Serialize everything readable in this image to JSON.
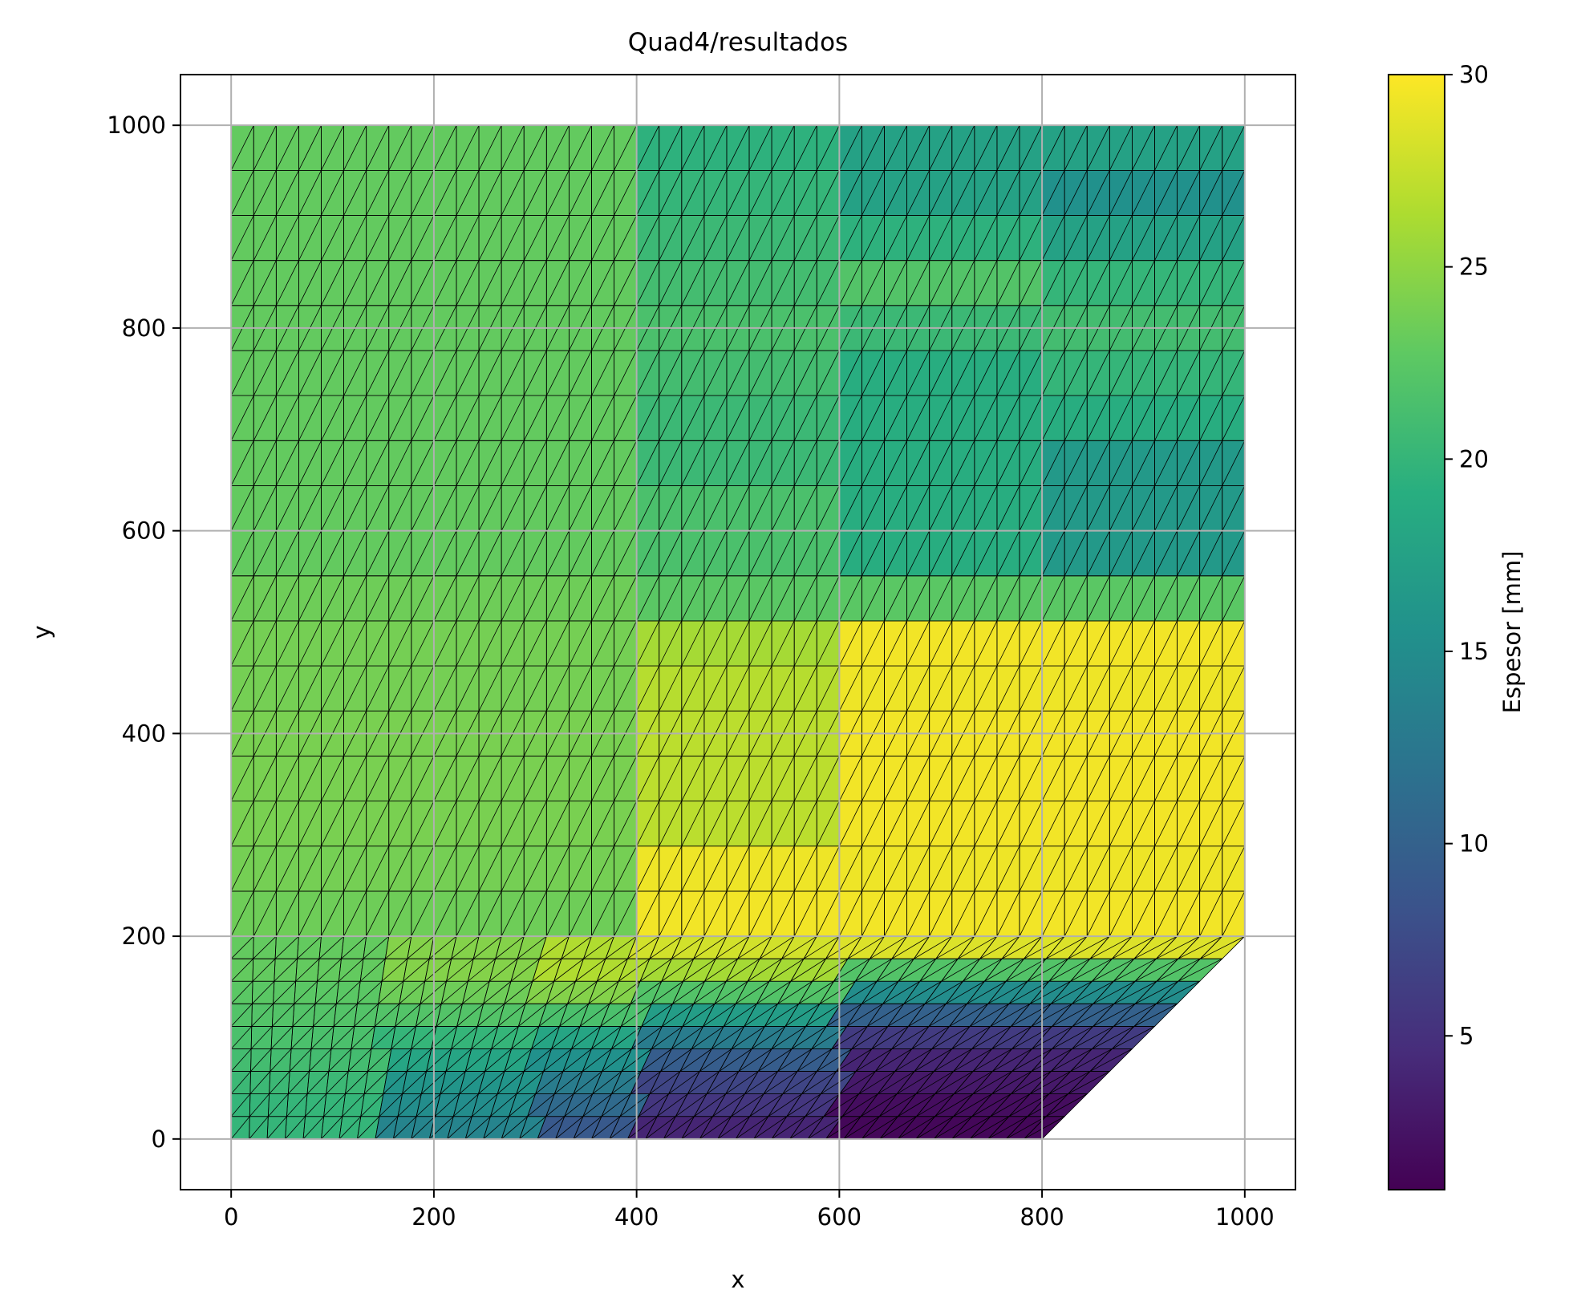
{
  "chart_data": {
    "type": "heatmap",
    "title": "Quad4/resultados",
    "xlabel": "x",
    "ylabel": "y",
    "xlim": [
      -50,
      1050
    ],
    "ylim": [
      -50,
      1050
    ],
    "xticks": [
      0,
      200,
      400,
      600,
      800,
      1000
    ],
    "yticks": [
      0,
      200,
      400,
      600,
      800,
      1000
    ],
    "x_tick_labels": [
      "0",
      "200",
      "400",
      "600",
      "800",
      "1000"
    ],
    "y_tick_labels": [
      "0",
      "200",
      "400",
      "600",
      "800",
      "1000"
    ],
    "grid": true,
    "colormap": "viridis",
    "colorbar": {
      "label": "Espesor [mm]",
      "min": 1,
      "max": 30,
      "ticks": [
        5,
        10,
        15,
        20,
        25,
        30
      ],
      "tick_labels": [
        "5",
        "10",
        "15",
        "20",
        "25",
        "30"
      ]
    },
    "mesh": {
      "element": "triangles (quads split by diagonal)",
      "domain_vertices": [
        [
          0,
          0
        ],
        [
          800,
          0
        ],
        [
          1000,
          200
        ],
        [
          1000,
          1000
        ],
        [
          0,
          1000
        ]
      ],
      "divisions_x": 45,
      "rows_lower_region": 9,
      "rows_upper_region": 18,
      "region_split_y": 200
    },
    "thickness_field": {
      "units": "mm",
      "upper_region_rows_bottom_to_top": [
        {
          "y_range": [
            200,
            244
          ],
          "zones": [
            {
              "x_range": [
                0,
                400
              ],
              "value": 23.5
            },
            {
              "x_range": [
                400,
                1000
              ],
              "value": 29.5
            }
          ]
        },
        {
          "y_range": [
            244,
            289
          ],
          "zones": [
            {
              "x_range": [
                0,
                400
              ],
              "value": 23.8
            },
            {
              "x_range": [
                400,
                1000
              ],
              "value": 29.3
            }
          ]
        },
        {
          "y_range": [
            289,
            333
          ],
          "zones": [
            {
              "x_range": [
                0,
                400
              ],
              "value": 24.0
            },
            {
              "x_range": [
                400,
                600
              ],
              "value": 27.0
            },
            {
              "x_range": [
                600,
                1000
              ],
              "value": 29.5
            }
          ]
        },
        {
          "y_range": [
            333,
            378
          ],
          "zones": [
            {
              "x_range": [
                0,
                400
              ],
              "value": 24.0
            },
            {
              "x_range": [
                400,
                600
              ],
              "value": 27.0
            },
            {
              "x_range": [
                600,
                1000
              ],
              "value": 29.5
            }
          ]
        },
        {
          "y_range": [
            378,
            422
          ],
          "zones": [
            {
              "x_range": [
                0,
                400
              ],
              "value": 24.0
            },
            {
              "x_range": [
                400,
                600
              ],
              "value": 27.0
            },
            {
              "x_range": [
                600,
                1000
              ],
              "value": 29.5
            }
          ]
        },
        {
          "y_range": [
            422,
            467
          ],
          "zones": [
            {
              "x_range": [
                0,
                400
              ],
              "value": 23.8
            },
            {
              "x_range": [
                400,
                600
              ],
              "value": 26.8
            },
            {
              "x_range": [
                600,
                1000
              ],
              "value": 29.3
            }
          ]
        },
        {
          "y_range": [
            467,
            511
          ],
          "zones": [
            {
              "x_range": [
                0,
                400
              ],
              "value": 23.8
            },
            {
              "x_range": [
                400,
                600
              ],
              "value": 26.0
            },
            {
              "x_range": [
                600,
                1000
              ],
              "value": 29.5
            }
          ]
        },
        {
          "y_range": [
            511,
            556
          ],
          "zones": [
            {
              "x_range": [
                0,
                400
              ],
              "value": 23.5
            },
            {
              "x_range": [
                400,
                1000
              ],
              "value": 22.5
            }
          ]
        },
        {
          "y_range": [
            556,
            600
          ],
          "zones": [
            {
              "x_range": [
                0,
                400
              ],
              "value": 23.0
            },
            {
              "x_range": [
                400,
                600
              ],
              "value": 21.5
            },
            {
              "x_range": [
                600,
                800
              ],
              "value": 19.0
            },
            {
              "x_range": [
                800,
                1000
              ],
              "value": 16.5
            }
          ]
        },
        {
          "y_range": [
            600,
            644
          ],
          "zones": [
            {
              "x_range": [
                0,
                400
              ],
              "value": 23.0
            },
            {
              "x_range": [
                400,
                600
              ],
              "value": 21.5
            },
            {
              "x_range": [
                600,
                800
              ],
              "value": 19.0
            },
            {
              "x_range": [
                800,
                1000
              ],
              "value": 16.5
            }
          ]
        },
        {
          "y_range": [
            644,
            689
          ],
          "zones": [
            {
              "x_range": [
                0,
                400
              ],
              "value": 23.0
            },
            {
              "x_range": [
                400,
                600
              ],
              "value": 20.5
            },
            {
              "x_range": [
                600,
                800
              ],
              "value": 19.0
            },
            {
              "x_range": [
                800,
                1000
              ],
              "value": 16.5
            }
          ]
        },
        {
          "y_range": [
            689,
            733
          ],
          "zones": [
            {
              "x_range": [
                0,
                400
              ],
              "value": 23.0
            },
            {
              "x_range": [
                400,
                600
              ],
              "value": 20.5
            },
            {
              "x_range": [
                600,
                800
              ],
              "value": 19.0
            },
            {
              "x_range": [
                800,
                1000
              ],
              "value": 19.0
            }
          ]
        },
        {
          "y_range": [
            733,
            778
          ],
          "zones": [
            {
              "x_range": [
                0,
                400
              ],
              "value": 23.0
            },
            {
              "x_range": [
                400,
                600
              ],
              "value": 21.0
            },
            {
              "x_range": [
                600,
                800
              ],
              "value": 19.0
            },
            {
              "x_range": [
                800,
                1000
              ],
              "value": 20.0
            }
          ]
        },
        {
          "y_range": [
            778,
            822
          ],
          "zones": [
            {
              "x_range": [
                0,
                400
              ],
              "value": 23.0
            },
            {
              "x_range": [
                400,
                600
              ],
              "value": 21.5
            },
            {
              "x_range": [
                600,
                800
              ],
              "value": 20.5
            },
            {
              "x_range": [
                800,
                1000
              ],
              "value": 21.0
            }
          ]
        },
        {
          "y_range": [
            822,
            867
          ],
          "zones": [
            {
              "x_range": [
                0,
                400
              ],
              "value": 23.0
            },
            {
              "x_range": [
                400,
                600
              ],
              "value": 21.0
            },
            {
              "x_range": [
                600,
                800
              ],
              "value": 22.0
            },
            {
              "x_range": [
                800,
                1000
              ],
              "value": 20.0
            }
          ]
        },
        {
          "y_range": [
            867,
            911
          ],
          "zones": [
            {
              "x_range": [
                0,
                400
              ],
              "value": 23.0
            },
            {
              "x_range": [
                400,
                600
              ],
              "value": 20.5
            },
            {
              "x_range": [
                600,
                800
              ],
              "value": 19.5
            },
            {
              "x_range": [
                800,
                1000
              ],
              "value": 17.5
            }
          ]
        },
        {
          "y_range": [
            911,
            956
          ],
          "zones": [
            {
              "x_range": [
                0,
                400
              ],
              "value": 23.0
            },
            {
              "x_range": [
                400,
                600
              ],
              "value": 20.0
            },
            {
              "x_range": [
                600,
                800
              ],
              "value": 17.5
            },
            {
              "x_range": [
                800,
                1000
              ],
              "value": 15.5
            }
          ]
        },
        {
          "y_range": [
            956,
            1000
          ],
          "zones": [
            {
              "x_range": [
                0,
                400
              ],
              "value": 23.0
            },
            {
              "x_range": [
                400,
                600
              ],
              "value": 19.5
            },
            {
              "x_range": [
                600,
                800
              ],
              "value": 17.5
            },
            {
              "x_range": [
                800,
                1000
              ],
              "value": 17.5
            }
          ]
        }
      ],
      "lower_region_rows_bottom_to_top": [
        {
          "y_range": [
            0,
            22
          ],
          "zones": [
            {
              "x_range": [
                0,
                150
              ],
              "value": 20.0
            },
            {
              "x_range": [
                150,
                300
              ],
              "value": 14.0
            },
            {
              "x_range": [
                300,
                400
              ],
              "value": 9.0
            },
            {
              "x_range": [
                400,
                600
              ],
              "value": 4.0
            },
            {
              "x_range": [
                600,
                822
              ],
              "value": 1.5
            }
          ]
        },
        {
          "y_range": [
            22,
            44
          ],
          "zones": [
            {
              "x_range": [
                0,
                150
              ],
              "value": 20.0
            },
            {
              "x_range": [
                150,
                300
              ],
              "value": 15.0
            },
            {
              "x_range": [
                300,
                400
              ],
              "value": 11.0
            },
            {
              "x_range": [
                400,
                600
              ],
              "value": 5.5
            },
            {
              "x_range": [
                600,
                844
              ],
              "value": 2.0
            }
          ]
        },
        {
          "y_range": [
            44,
            67
          ],
          "zones": [
            {
              "x_range": [
                0,
                150
              ],
              "value": 20.5
            },
            {
              "x_range": [
                150,
                300
              ],
              "value": 16.0
            },
            {
              "x_range": [
                300,
                400
              ],
              "value": 13.0
            },
            {
              "x_range": [
                400,
                600
              ],
              "value": 7.0
            },
            {
              "x_range": [
                600,
                867
              ],
              "value": 3.0
            }
          ]
        },
        {
          "y_range": [
            67,
            89
          ],
          "zones": [
            {
              "x_range": [
                0,
                150
              ],
              "value": 21.0
            },
            {
              "x_range": [
                150,
                300
              ],
              "value": 18.0
            },
            {
              "x_range": [
                300,
                400
              ],
              "value": 15.5
            },
            {
              "x_range": [
                400,
                600
              ],
              "value": 9.5
            },
            {
              "x_range": [
                600,
                889
              ],
              "value": 4.0
            }
          ]
        },
        {
          "y_range": [
            89,
            111
          ],
          "zones": [
            {
              "x_range": [
                0,
                150
              ],
              "value": 21.5
            },
            {
              "x_range": [
                150,
                300
              ],
              "value": 20.0
            },
            {
              "x_range": [
                300,
                400
              ],
              "value": 18.0
            },
            {
              "x_range": [
                400,
                600
              ],
              "value": 13.0
            },
            {
              "x_range": [
                600,
                911
              ],
              "value": 6.0
            }
          ]
        },
        {
          "y_range": [
            111,
            133
          ],
          "zones": [
            {
              "x_range": [
                0,
                150
              ],
              "value": 22.0
            },
            {
              "x_range": [
                150,
                300
              ],
              "value": 22.0
            },
            {
              "x_range": [
                300,
                400
              ],
              "value": 21.5
            },
            {
              "x_range": [
                400,
                600
              ],
              "value": 17.0
            },
            {
              "x_range": [
                600,
                933
              ],
              "value": 10.0
            }
          ]
        },
        {
          "y_range": [
            133,
            156
          ],
          "zones": [
            {
              "x_range": [
                0,
                150
              ],
              "value": 22.5
            },
            {
              "x_range": [
                150,
                300
              ],
              "value": 23.5
            },
            {
              "x_range": [
                300,
                400
              ],
              "value": 24.5
            },
            {
              "x_range": [
                400,
                600
              ],
              "value": 22.0
            },
            {
              "x_range": [
                600,
                956
              ],
              "value": 15.0
            }
          ]
        },
        {
          "y_range": [
            156,
            178
          ],
          "zones": [
            {
              "x_range": [
                0,
                150
              ],
              "value": 23.0
            },
            {
              "x_range": [
                150,
                300
              ],
              "value": 24.5
            },
            {
              "x_range": [
                300,
                400
              ],
              "value": 26.5
            },
            {
              "x_range": [
                400,
                600
              ],
              "value": 26.0
            },
            {
              "x_range": [
                600,
                978
              ],
              "value": 22.0
            }
          ]
        },
        {
          "y_range": [
            178,
            200
          ],
          "zones": [
            {
              "x_range": [
                0,
                150
              ],
              "value": 23.0
            },
            {
              "x_range": [
                150,
                300
              ],
              "value": 24.5
            },
            {
              "x_range": [
                300,
                400
              ],
              "value": 26.5
            },
            {
              "x_range": [
                400,
                600
              ],
              "value": 28.0
            },
            {
              "x_range": [
                600,
                1000
              ],
              "value": 28.5
            }
          ]
        }
      ]
    }
  }
}
